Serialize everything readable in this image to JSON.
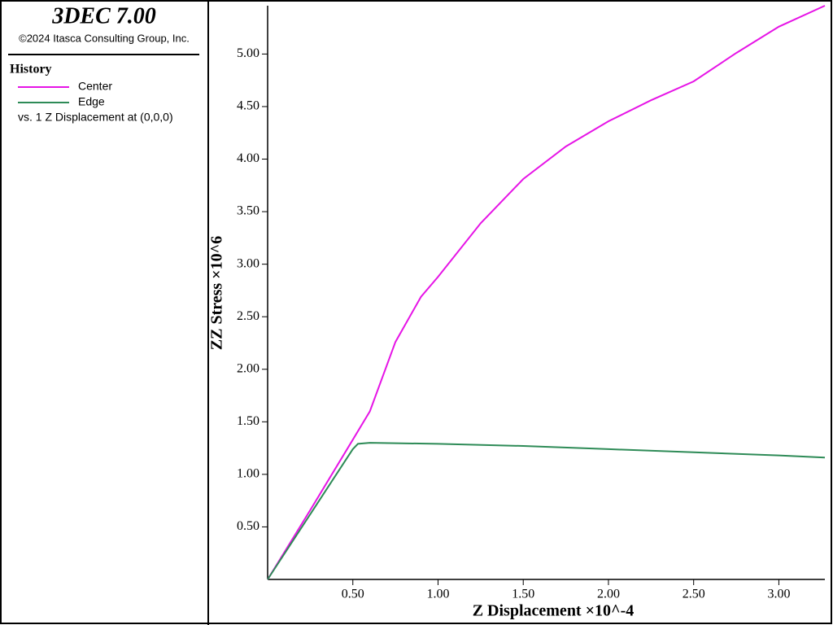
{
  "sidebar": {
    "title": "3DEC 7.00",
    "copyright": "©2024 Itasca Consulting Group, Inc.",
    "section": "History",
    "vs_label": "vs. 1 Z Displacement at (0,0,0)"
  },
  "chart_data": {
    "type": "line",
    "xlabel": "Z Displacement ×10^-4",
    "ylabel": "ZZ Stress ×10^6",
    "xlim": [
      0,
      3.27
    ],
    "ylim": [
      0,
      5.46
    ],
    "xticks": [
      {
        "value": 0.5,
        "label": "0.50"
      },
      {
        "value": 1,
        "label": "1.00"
      },
      {
        "value": 1.5,
        "label": "1.50"
      },
      {
        "value": 2,
        "label": "2.00"
      },
      {
        "value": 2.5,
        "label": "2.50"
      },
      {
        "value": 3,
        "label": "3.00"
      }
    ],
    "yticks": [
      {
        "value": 0.5,
        "label": "0.50"
      },
      {
        "value": 1,
        "label": "1.00"
      },
      {
        "value": 1.5,
        "label": "1.50"
      },
      {
        "value": 2,
        "label": "2.00"
      },
      {
        "value": 2.5,
        "label": "2.50"
      },
      {
        "value": 3,
        "label": "3.00"
      },
      {
        "value": 3.5,
        "label": "3.50"
      },
      {
        "value": 4,
        "label": "4.00"
      },
      {
        "value": 4.5,
        "label": "4.50"
      },
      {
        "value": 5,
        "label": "5.00"
      }
    ],
    "series": [
      {
        "name": "Center",
        "color": "#e614e6",
        "x": [
          0,
          0.25,
          0.5,
          0.6,
          0.75,
          0.9,
          1.0,
          1.25,
          1.5,
          1.75,
          2.0,
          2.25,
          2.5,
          2.75,
          3.0,
          3.27
        ],
        "values": [
          0,
          0.66,
          1.33,
          1.6,
          2.26,
          2.69,
          2.88,
          3.39,
          3.81,
          4.12,
          4.36,
          4.56,
          4.74,
          5.01,
          5.26,
          5.46
        ]
      },
      {
        "name": "Edge",
        "color": "#2e8b57",
        "x": [
          0,
          0.25,
          0.5,
          0.53,
          0.6,
          1.0,
          1.5,
          2.0,
          2.5,
          3.0,
          3.27
        ],
        "values": [
          0,
          0.62,
          1.24,
          1.29,
          1.3,
          1.29,
          1.27,
          1.24,
          1.21,
          1.18,
          1.16
        ]
      }
    ]
  }
}
